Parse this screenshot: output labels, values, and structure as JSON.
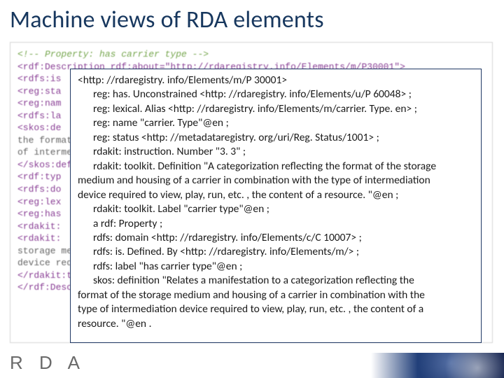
{
  "title": "Machine views of RDA elements",
  "logo": "R D A",
  "colors": {
    "title_color": "#17375e",
    "box_border": "#203864",
    "bg_box_border": "#d0d0d0",
    "footer_grad_start": "#22407a",
    "footer_grad_end": "#0e1d4a",
    "logo_color": "#6a6a6a"
  },
  "background_code": {
    "fontsize": 13,
    "lines": [
      "<!-- Property: has carrier type -->",
      "<rdf:Description rdf:about=\"http://rdaregistry.info/Elements/m/P30001\">",
      "  <rdfs:is",
      "  <reg:sta",
      "  <reg:nam",
      "  <rdfs:la",
      "  <skos:de",
      "the format",
      "of interme",
      "</skos:def",
      "  <rdf:typ",
      "  <rdfs:do",
      "  <reg:lex",
      "  <reg:has",
      "  <rdakit:",
      "  <rdakit:",
      "storage me",
      "device req",
      "</rdakit:t",
      "</rdf:Desc"
    ]
  },
  "foreground": {
    "fontsize": 15.5,
    "l0": "<http: //rdaregistry. info/Elements/m/P 30001>",
    "l1": "reg: has. Unconstrained <http: //rdaregistry. info/Elements/u/P 60048> ;",
    "l2": "reg: lexical. Alias <http: //rdaregistry. info/Elements/m/carrier. Type. en> ;",
    "l3": "reg: name \"carrier. Type\"@en ;",
    "l4": "reg: status <http: //metadataregistry. org/uri/Reg. Status/1001> ;",
    "l5": "rdakit: instruction. Number \"3. 3\" ;",
    "l6": "rdakit: toolkit. Definition \"A categorization reflecting the format of the storage",
    "l7": "medium and housing of a carrier in combination with the type of intermediation",
    "l8": "device required to view, play, run, etc. , the content of a resource. \"@en ;",
    "l9": "rdakit: toolkit. Label \"carrier type\"@en ;",
    "l10": "a rdf: Property ;",
    "l11": "rdfs: domain <http: //rdaregistry. info/Elements/c/C 10007> ;",
    "l12": "rdfs: is. Defined. By <http: //rdaregistry. info/Elements/m/> ;",
    "l13": "rdfs: label \"has carrier type\"@en ;",
    "l14": "skos: definition \"Relates a manifestation to a categorization reflecting the",
    "l15": "format of the storage medium and housing of a carrier in combination with the",
    "l16": "type of intermediation device required to view, play, run, etc. , the content of a",
    "l17": "resource. \"@en ."
  }
}
